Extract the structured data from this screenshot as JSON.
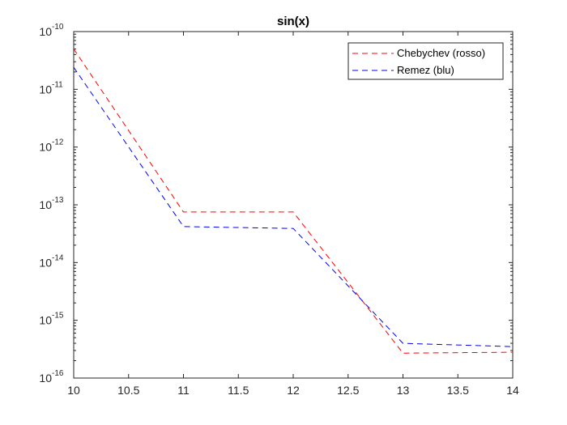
{
  "chart_data": {
    "type": "line",
    "title": "sin(x)",
    "xlabel": "",
    "ylabel": "",
    "xlim": [
      10,
      14
    ],
    "ylim": [
      1e-16,
      1e-10
    ],
    "yscale": "log",
    "grid": false,
    "legend_position": "top-right",
    "x_ticks": [
      "10",
      "10.5",
      "11",
      "11.5",
      "12",
      "12.5",
      "13",
      "13.5",
      "14"
    ],
    "y_ticks": [
      {
        "base": "10",
        "exp": "-16"
      },
      {
        "base": "10",
        "exp": "-15"
      },
      {
        "base": "10",
        "exp": "-14"
      },
      {
        "base": "10",
        "exp": "-13"
      },
      {
        "base": "10",
        "exp": "-12"
      },
      {
        "base": "10",
        "exp": "-11"
      },
      {
        "base": "10",
        "exp": "-10"
      }
    ],
    "x": [
      10,
      11,
      12,
      13,
      14
    ],
    "series": [
      {
        "name": "Chebychev (rosso)",
        "color": "#ff0000",
        "style": "dashed",
        "values": [
          5e-11,
          7.5e-14,
          7.5e-14,
          2.7e-16,
          2.8e-16
        ]
      },
      {
        "name": "Remez (blu)",
        "color": "#0000ff",
        "style": "dashed",
        "values": [
          2.4e-11,
          4.2e-14,
          3.9e-14,
          4e-16,
          3.5e-16
        ]
      }
    ]
  }
}
